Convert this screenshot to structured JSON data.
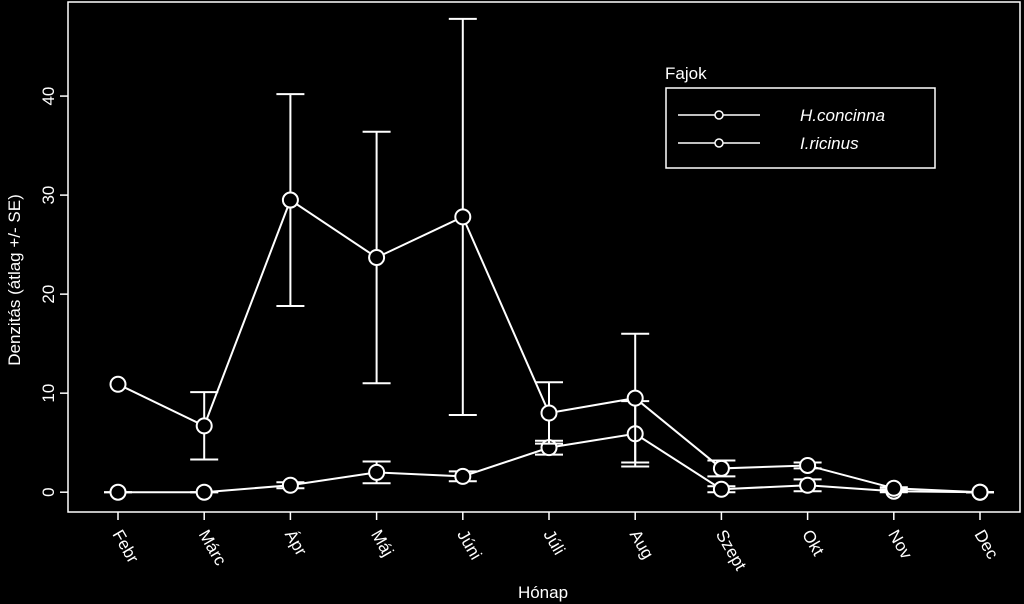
{
  "chart_data": {
    "type": "line",
    "x_label": "Hónap",
    "y_label": "Denzitás (átlag +/- SE)",
    "legend_title": "Fajok",
    "legend_position": "upper right",
    "categories": [
      "Febr",
      "Márc",
      "Ápr",
      "Máj",
      "Júni",
      "Júli",
      "Aug",
      "Szept",
      "Okt",
      "Nov",
      "Dec"
    ],
    "ylim": [
      -2,
      49.5
    ],
    "yticks": [
      0,
      10,
      20,
      30,
      40
    ],
    "series": [
      {
        "name": "H.concinna",
        "color": "#ffffff",
        "values": [
          0,
          0,
          0.7,
          2.0,
          1.6,
          4.5,
          5.9,
          0.3,
          0.7,
          0.1,
          0
        ],
        "errors": [
          0,
          0,
          0.3,
          1.1,
          0.5,
          0.7,
          3.3,
          0.3,
          0.6,
          0.1,
          0
        ]
      },
      {
        "name": "I.ricinus",
        "color": "#ffffff",
        "values": [
          10.9,
          6.7,
          29.5,
          23.7,
          27.8,
          8.0,
          9.5,
          2.4,
          2.7,
          0.4,
          0
        ],
        "errors": [
          null,
          3.4,
          10.7,
          12.7,
          20.0,
          3.1,
          6.5,
          0.8,
          0.3,
          0.1,
          0
        ]
      }
    ]
  }
}
